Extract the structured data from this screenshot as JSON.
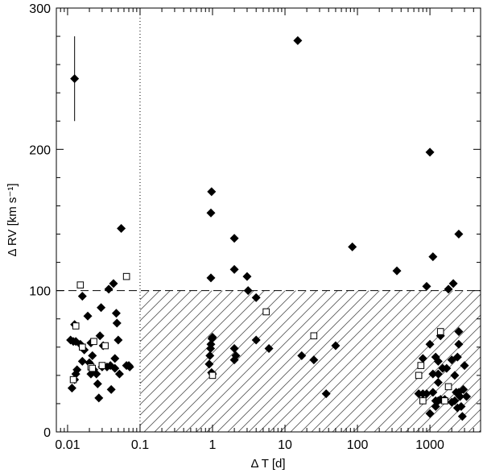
{
  "chart_data": {
    "type": "scatter",
    "title": "",
    "xlabel": "Δ T [d]",
    "ylabel": "Δ RV [km s⁻¹]",
    "xscale": "log",
    "xlim": [
      0.007,
      5000
    ],
    "ylim": [
      0,
      300
    ],
    "x_ticks": [
      {
        "value": 0.01,
        "label": "0.01"
      },
      {
        "value": 0.1,
        "label": "0.1"
      },
      {
        "value": 1,
        "label": "1"
      },
      {
        "value": 10,
        "label": "10"
      },
      {
        "value": 100,
        "label": "100"
      },
      {
        "value": 1000,
        "label": "1000"
      }
    ],
    "y_ticks": [
      {
        "value": 0,
        "label": "0"
      },
      {
        "value": 100,
        "label": "100"
      },
      {
        "value": 200,
        "label": "200"
      },
      {
        "value": 300,
        "label": "300"
      }
    ],
    "reference_lines": {
      "vertical_dotted_x": 0.1,
      "horizontal_dashed_y": 100
    },
    "hatched_region": {
      "x_from": 0.1,
      "x_to": 5000,
      "y_from": 0,
      "y_to": 100
    },
    "error_bar": {
      "x": 0.0125,
      "y": 250,
      "y_low": 220,
      "y_high": 280
    },
    "series": [
      {
        "marker": "filled-diamond",
        "points": [
          [
            0.0125,
            250
          ],
          [
            0.011,
            65
          ],
          [
            0.012,
            64
          ],
          [
            0.0125,
            76
          ],
          [
            0.013,
            64
          ],
          [
            0.0115,
            31
          ],
          [
            0.0125,
            37
          ],
          [
            0.013,
            41
          ],
          [
            0.0135,
            44
          ],
          [
            0.015,
            62
          ],
          [
            0.016,
            96
          ],
          [
            0.017,
            58
          ],
          [
            0.016,
            50
          ],
          [
            0.019,
            82
          ],
          [
            0.021,
            63
          ],
          [
            0.02,
            49
          ],
          [
            0.022,
            54
          ],
          [
            0.021,
            41
          ],
          [
            0.023,
            44
          ],
          [
            0.025,
            41
          ],
          [
            0.026,
            34
          ],
          [
            0.027,
            24
          ],
          [
            0.028,
            68
          ],
          [
            0.029,
            88
          ],
          [
            0.03,
            46
          ],
          [
            0.031,
            61
          ],
          [
            0.035,
            46
          ],
          [
            0.037,
            101
          ],
          [
            0.039,
            47
          ],
          [
            0.04,
            30
          ],
          [
            0.043,
            105
          ],
          [
            0.045,
            52
          ],
          [
            0.045,
            45
          ],
          [
            0.047,
            84
          ],
          [
            0.048,
            77
          ],
          [
            0.05,
            65
          ],
          [
            0.052,
            41
          ],
          [
            0.055,
            144
          ],
          [
            0.065,
            47
          ],
          [
            0.07,
            47
          ],
          [
            0.072,
            46
          ],
          [
            0.95,
            109
          ],
          [
            0.97,
            170
          ],
          [
            0.95,
            155
          ],
          [
            0.9,
            48
          ],
          [
            0.92,
            54
          ],
          [
            0.94,
            59
          ],
          [
            0.95,
            62
          ],
          [
            0.97,
            42
          ],
          [
            0.98,
            66
          ],
          [
            1.0,
            67
          ],
          [
            1.0,
            41
          ],
          [
            2.0,
            137
          ],
          [
            2.0,
            115
          ],
          [
            2.0,
            59
          ],
          [
            2.0,
            51
          ],
          [
            2.1,
            54
          ],
          [
            3.0,
            110
          ],
          [
            3.1,
            100
          ],
          [
            4.0,
            95
          ],
          [
            4.0,
            65
          ],
          [
            6.0,
            59
          ],
          [
            15,
            277
          ],
          [
            17,
            54
          ],
          [
            25,
            51
          ],
          [
            37,
            27
          ],
          [
            50,
            61
          ],
          [
            85,
            131
          ],
          [
            350,
            114
          ],
          [
            900,
            103
          ],
          [
            1000,
            198
          ],
          [
            1100,
            124
          ],
          [
            1200,
            53
          ],
          [
            1300,
            50
          ],
          [
            800,
            52
          ],
          [
            700,
            27
          ],
          [
            800,
            27
          ],
          [
            900,
            27
          ],
          [
            1000,
            62
          ],
          [
            1100,
            28
          ],
          [
            1200,
            22
          ],
          [
            1000,
            13
          ],
          [
            1200,
            18
          ],
          [
            1300,
            22
          ],
          [
            1400,
            68
          ],
          [
            1500,
            45
          ],
          [
            1600,
            23
          ],
          [
            1700,
            45
          ],
          [
            1800,
            101
          ],
          [
            2000,
            51
          ],
          [
            2100,
            105
          ],
          [
            2200,
            40
          ],
          [
            2300,
            28
          ],
          [
            2400,
            53
          ],
          [
            2500,
            140
          ],
          [
            2500,
            71
          ],
          [
            2500,
            62
          ],
          [
            2500,
            28
          ],
          [
            2600,
            25
          ],
          [
            2700,
            18
          ],
          [
            2800,
            11
          ],
          [
            2900,
            30
          ],
          [
            3000,
            47
          ],
          [
            3200,
            25
          ],
          [
            2000,
            21
          ],
          [
            2200,
            22
          ],
          [
            2400,
            17
          ],
          [
            1400,
            23
          ],
          [
            1100,
            41
          ],
          [
            1300,
            35
          ],
          [
            1300,
            41
          ]
        ]
      },
      {
        "marker": "open-square",
        "points": [
          [
            0.012,
            37
          ],
          [
            0.013,
            75
          ],
          [
            0.015,
            104
          ],
          [
            0.016,
            60
          ],
          [
            0.021,
            46
          ],
          [
            0.022,
            45
          ],
          [
            0.023,
            64
          ],
          [
            0.03,
            47
          ],
          [
            0.033,
            61
          ],
          [
            0.065,
            110
          ],
          [
            1.0,
            40
          ],
          [
            5.5,
            85
          ],
          [
            25,
            68
          ],
          [
            700,
            40
          ],
          [
            750,
            47
          ],
          [
            800,
            22
          ],
          [
            1400,
            71
          ],
          [
            1600,
            22
          ],
          [
            1800,
            32
          ]
        ]
      }
    ]
  }
}
